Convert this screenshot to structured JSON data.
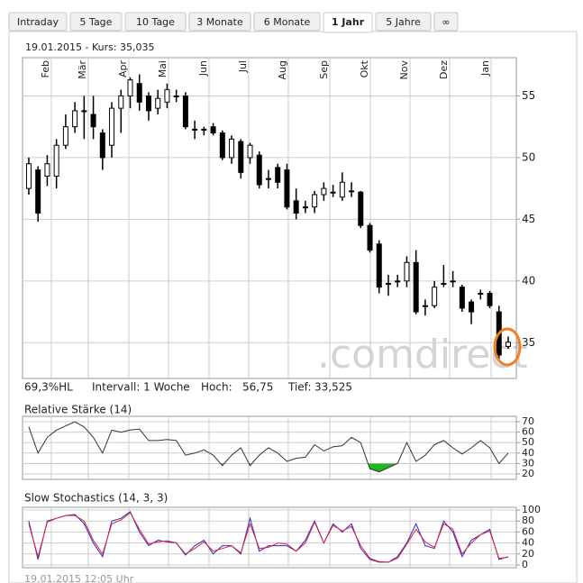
{
  "tabs": [
    "Intraday",
    "5 Tage",
    "10 Tage",
    "3 Monate",
    "6 Monate",
    "1 Jahr",
    "5 Jahre",
    "∞"
  ],
  "active_tab": 5,
  "quote": "19.01.2015  -  Kurs: 35,035",
  "summary": {
    "range": "69,3%HL",
    "interval": "Intervall: 1 Woche",
    "high_label": "Hoch:",
    "high": "56,75",
    "low_label": "Tief:",
    "low": "33,525"
  },
  "watermark": ".comdirect",
  "timestamp": "19.01.2015 12:05 Uhr",
  "chart_data": [
    {
      "type": "candlestick",
      "up_color": "#ffffff",
      "down_color": "#000000",
      "open": [
        47.5,
        49,
        48.5,
        48.5,
        51,
        52.5,
        53.8,
        53.5,
        52,
        51,
        54,
        55,
        56,
        55,
        54,
        54.5,
        55,
        55,
        52.3,
        52.3,
        52.5,
        52,
        50,
        51.3,
        50,
        50.2,
        48.3,
        49.2,
        49,
        46.5,
        46,
        46,
        47,
        47.2,
        46.8,
        47.3,
        47.2,
        44.5,
        43,
        39.8,
        40,
        40,
        41.5,
        38,
        38,
        39.8,
        40,
        39.5,
        38.3,
        39,
        39,
        37.5,
        34.7
      ],
      "high": [
        50,
        49.3,
        50.2,
        51.5,
        53.5,
        54.5,
        55,
        55,
        52.3,
        54.5,
        55.5,
        56.5,
        56.75,
        55.3,
        55.5,
        56,
        55.5,
        55.3,
        53,
        52.5,
        52.8,
        52.2,
        51.8,
        51.5,
        51.2,
        50.5,
        49,
        49.5,
        49.5,
        47.5,
        46.5,
        47.3,
        48,
        47.8,
        48.8,
        48,
        47.3,
        44.7,
        43.3,
        40.5,
        40.5,
        42,
        42.5,
        38.5,
        40,
        41.3,
        40.8,
        39.7,
        38.5,
        39.3,
        39.2,
        38,
        35.5
      ],
      "low": [
        47,
        44.8,
        47.7,
        47.5,
        50.7,
        52,
        51.5,
        51.5,
        49,
        50,
        52,
        54,
        53.8,
        53,
        53.5,
        54,
        54.5,
        52.3,
        51.5,
        51.8,
        51.8,
        49.8,
        49.5,
        48.3,
        49.5,
        47.5,
        47.5,
        47.5,
        45.8,
        45,
        45.5,
        45.5,
        46.5,
        46.8,
        46.5,
        46.8,
        44.3,
        42.3,
        39,
        38.8,
        39.5,
        39.5,
        37.3,
        37.2,
        37.8,
        39.5,
        39.5,
        37.5,
        36.5,
        38.5,
        37.8,
        33.525,
        34.5
      ],
      "close": [
        49.5,
        45.5,
        49.5,
        51,
        52.5,
        53.8,
        53.8,
        52.5,
        50,
        54,
        55,
        56.3,
        54.5,
        53.8,
        54.8,
        55.5,
        55,
        52.5,
        52.3,
        52.3,
        52,
        50,
        51.5,
        48.8,
        51,
        47.8,
        48.3,
        48,
        46,
        45.5,
        46,
        47,
        47.5,
        47.2,
        48,
        47.3,
        44.5,
        42.5,
        39.5,
        39.8,
        40,
        41.5,
        37.5,
        38,
        39.5,
        39.8,
        40,
        37.8,
        37.5,
        39,
        38,
        34,
        35.035
      ],
      "xlim": [
        -0.68,
        52.88
      ],
      "xticks": [
        {
          "value": 2.44,
          "label": "Feb"
        },
        {
          "value": 6.45,
          "label": "Mär"
        },
        {
          "value": 10.85,
          "label": "Apr"
        },
        {
          "value": 15.15,
          "label": "Mai"
        },
        {
          "value": 19.55,
          "label": "Jun"
        },
        {
          "value": 23.85,
          "label": "Jul"
        },
        {
          "value": 28.15,
          "label": "Aug"
        },
        {
          "value": 32.65,
          "label": "Sep"
        },
        {
          "value": 37.05,
          "label": "Okt"
        },
        {
          "value": 41.35,
          "label": "Nov"
        },
        {
          "value": 45.65,
          "label": "Dez"
        },
        {
          "value": 50.15,
          "label": "Jan"
        }
      ],
      "ylim": [
        32.1,
        58.1
      ],
      "yticks": [
        35,
        40,
        45,
        50,
        55
      ],
      "grid": true
    },
    {
      "type": "line",
      "title": "Relative Stärke (14)",
      "color": "#333333",
      "oversold": 30,
      "oversold_color": "#22b422",
      "values": [
        65,
        40,
        55,
        62,
        66,
        70,
        65,
        55,
        40,
        62,
        60,
        62,
        63,
        52,
        52,
        53,
        52,
        38,
        40,
        43,
        38,
        28,
        38,
        45,
        28,
        38,
        45,
        40,
        32,
        35,
        36,
        48,
        42,
        46,
        47,
        55,
        50,
        25,
        22,
        26,
        30,
        50,
        32,
        38,
        48,
        52,
        45,
        39,
        45,
        52,
        45,
        30,
        40
      ],
      "ylim": [
        14.8,
        75.2
      ],
      "yticks": [
        20,
        30,
        40,
        50,
        60,
        70
      ],
      "grid": true
    },
    {
      "type": "line",
      "title": "Slow Stochastics (14, 3, 3)",
      "series": [
        {
          "color": "#2a2ac8",
          "values": [
            80,
            10,
            80,
            85,
            90,
            92,
            75,
            40,
            15,
            80,
            85,
            97,
            60,
            35,
            45,
            42,
            40,
            18,
            35,
            45,
            20,
            35,
            35,
            20,
            85,
            25,
            35,
            35,
            35,
            25,
            45,
            80,
            40,
            75,
            60,
            75,
            30,
            10,
            5,
            5,
            15,
            40,
            75,
            35,
            30,
            80,
            60,
            15,
            45,
            55,
            65,
            10,
            15
          ]
        },
        {
          "color": "#e0203a",
          "values": [
            75,
            15,
            78,
            85,
            90,
            90,
            80,
            45,
            20,
            75,
            82,
            95,
            65,
            38,
            42,
            44,
            40,
            20,
            30,
            42,
            25,
            30,
            35,
            22,
            75,
            30,
            32,
            40,
            38,
            25,
            40,
            78,
            40,
            72,
            62,
            70,
            35,
            12,
            6,
            5,
            12,
            38,
            65,
            42,
            32,
            75,
            65,
            20,
            40,
            55,
            62,
            12,
            14
          ]
        }
      ],
      "ylim": [
        -5,
        105
      ],
      "yticks": [
        0,
        20,
        40,
        60,
        80,
        100
      ],
      "grid": true
    }
  ]
}
